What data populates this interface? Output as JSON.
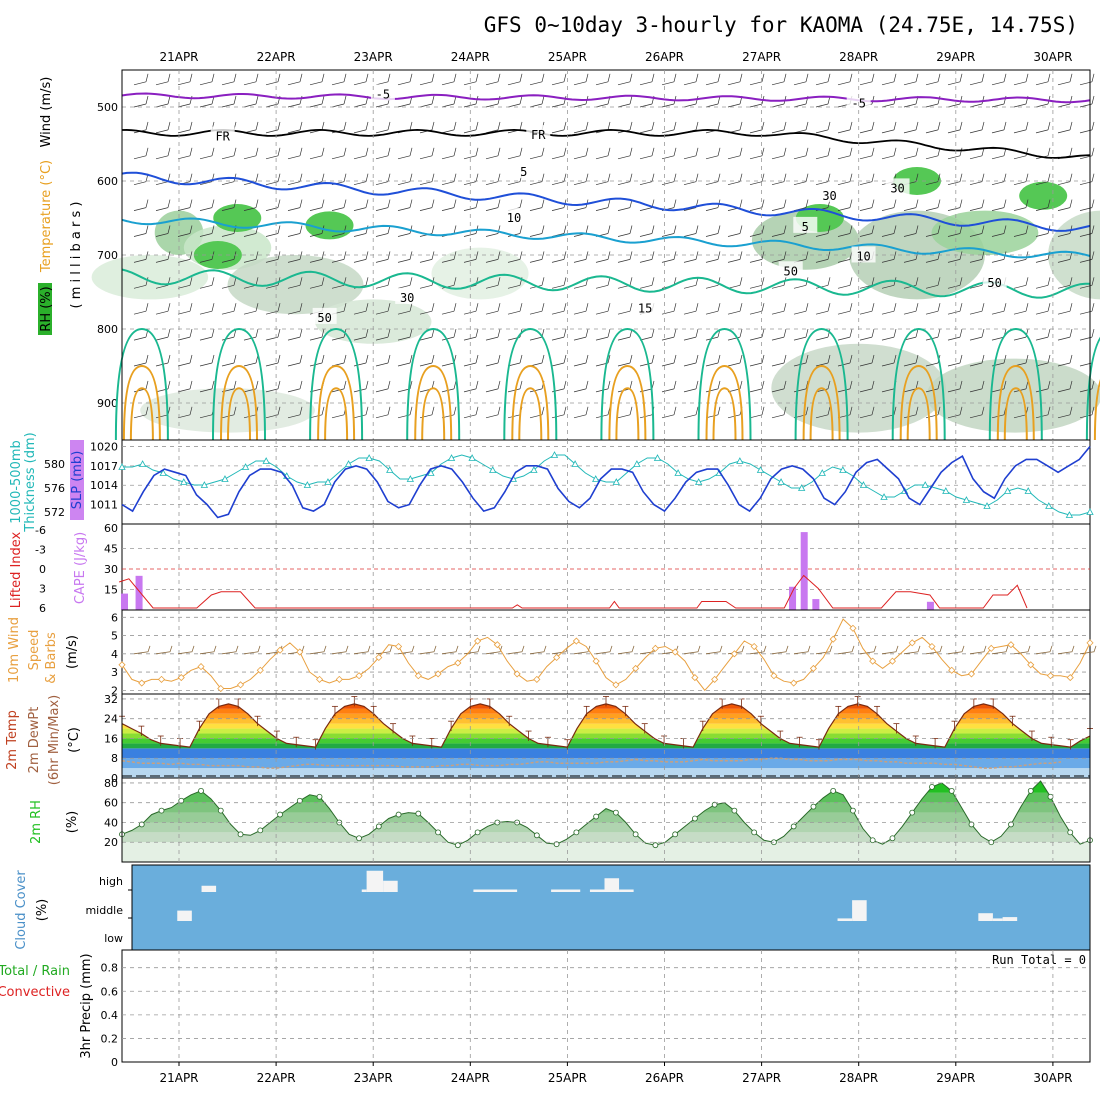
{
  "title": "GFS 0~10day 3-hourly for KAOMA (24.75E, 14.75S)",
  "days": [
    "21APR",
    "22APR",
    "23APR",
    "24APR",
    "25APR",
    "26APR",
    "27APR",
    "28APR",
    "29APR",
    "30APR"
  ],
  "colors": {
    "rh_green": "#2bb02b",
    "temp_blue": "#1f4fd8",
    "temp_cyan": "#1aa0d0",
    "temp_teal": "#1ab890",
    "temp_orange": "#e8a020",
    "temp_purple": "#8a1fc0",
    "slp": "#1f3fd0",
    "thickness": "#22b8b8",
    "cape": "#c878f0",
    "lifted": "#dd2222",
    "wind": "#e8a040",
    "rh2m": "#22c022",
    "cloud": "#6aaedc"
  },
  "chart_data": [
    {
      "type": "heatmap",
      "name": "upper-air",
      "ylabel_parts": [
        "RH (%)",
        "Temperature (°C)",
        "Wind (m/s)"
      ],
      "ylabel_right": "( m i l l i b a r s )",
      "y_ticks": [
        500,
        600,
        700,
        800,
        900
      ],
      "ylim": [
        950,
        450
      ],
      "contour_labels": [
        {
          "text": "-5",
          "day": 2.1,
          "p": 483,
          "color": "#8a1fc0"
        },
        {
          "text": "-5",
          "day": 7.0,
          "p": 495,
          "color": "#8a1fc0"
        },
        {
          "text": "FR",
          "day": 0.45,
          "p": 540,
          "color": "#000000"
        },
        {
          "text": "FR",
          "day": 3.7,
          "p": 538,
          "color": "#000000"
        },
        {
          "text": "5",
          "day": 3.55,
          "p": 588,
          "color": "#1f4fd8"
        },
        {
          "text": "5",
          "day": 6.45,
          "p": 662,
          "color": "#1f4fd8"
        },
        {
          "text": "10",
          "day": 3.45,
          "p": 650,
          "color": "#1aa0d0"
        },
        {
          "text": "10",
          "day": 7.05,
          "p": 702,
          "color": "#1aa0d0"
        },
        {
          "text": "15",
          "day": 4.8,
          "p": 772,
          "color": "#1ab890"
        },
        {
          "text": "50",
          "day": 1.5,
          "p": 785,
          "color": "#888888"
        },
        {
          "text": "30",
          "day": 2.35,
          "p": 758,
          "color": "#888888"
        },
        {
          "text": "50",
          "day": 6.3,
          "p": 722,
          "color": "#888888"
        },
        {
          "text": "50",
          "day": 8.4,
          "p": 738,
          "color": "#888888"
        },
        {
          "text": "30",
          "day": 6.7,
          "p": 620,
          "color": "#888888"
        },
        {
          "text": "30",
          "day": 7.4,
          "p": 610,
          "color": "#888888"
        }
      ]
    },
    {
      "type": "line",
      "name": "slp-thickness",
      "ylabel_left": "1000-500mb Thickness (dm)",
      "ylabel_right": "SLP (mb)",
      "left_ticks": [
        572,
        576,
        580
      ],
      "left_ylim": [
        570,
        584
      ],
      "right_ticks": [
        1011,
        1014,
        1017,
        1020
      ],
      "right_ylim": [
        1008,
        1021
      ],
      "series": [
        {
          "name": "SLP",
          "axis": "right",
          "values": [
            1011,
            1010,
            1013,
            1015.5,
            1016.5,
            1016,
            1015.5,
            1012.5,
            1011,
            1009,
            1009.5,
            1013,
            1015.5,
            1016.5,
            1016.5,
            1016,
            1014,
            1010.5,
            1010,
            1011,
            1014.5,
            1016.5,
            1017,
            1016.5,
            1014.5,
            1011.5,
            1010.5,
            1011,
            1014,
            1016.5,
            1017,
            1016.5,
            1014.5,
            1012,
            1010,
            1010.5,
            1013,
            1016,
            1017,
            1017,
            1016.5,
            1013.5,
            1011.5,
            1010.5,
            1012,
            1015,
            1016.5,
            1016.5,
            1016,
            1013,
            1011,
            1010,
            1012,
            1014.5,
            1016,
            1016.5,
            1016.5,
            1014,
            1011,
            1010,
            1012,
            1015,
            1016.5,
            1017,
            1016.5,
            1015,
            1012,
            1011,
            1013,
            1016,
            1017.5,
            1018,
            1016.5,
            1015,
            1012,
            1011,
            1013.5,
            1016,
            1017.5,
            1018.5,
            1015,
            1013,
            1012,
            1015,
            1017,
            1018,
            1018,
            1017,
            1016,
            1017,
            1018,
            1020
          ]
        },
        {
          "name": "Thickness",
          "axis": "left",
          "values": [
            579.5,
            579.5,
            580,
            579,
            578.5,
            577.5,
            577,
            576.5,
            576.5,
            577,
            577.5,
            578.5,
            579.5,
            580.5,
            580.5,
            579.5,
            578,
            577,
            576.5,
            577,
            577,
            578.5,
            580,
            581,
            581,
            580.5,
            579,
            577.5,
            577.5,
            578,
            578.5,
            580,
            581,
            581.5,
            581,
            580,
            579,
            578,
            577.5,
            578,
            579,
            580.5,
            581.5,
            581.5,
            580,
            578.5,
            577.5,
            577,
            577,
            578.5,
            580,
            581,
            581,
            580,
            578.5,
            577.5,
            577,
            577.5,
            578.5,
            580,
            580.5,
            580,
            579,
            578,
            577,
            576,
            576,
            577,
            578.5,
            579.5,
            579,
            578,
            576.5,
            575.5,
            574.5,
            574.5,
            575.5,
            576.5,
            576.5,
            576,
            575.5,
            574.5,
            574,
            573.5,
            573,
            574,
            575.5,
            576,
            575.5,
            574,
            573,
            572,
            571.5,
            571.5,
            572
          ]
        }
      ]
    },
    {
      "type": "bar",
      "name": "cape-li",
      "ylabel_left": "Lifted Index",
      "ylabel_right": "CAPE (J/kg)",
      "left_ticks": [
        "-6",
        "-3",
        "0",
        "3",
        "6"
      ],
      "right_ticks": [
        15,
        30,
        45,
        60
      ],
      "right_ylim": [
        0,
        60
      ],
      "cape": [
        {
          "day": 0.0,
          "v": 12
        },
        {
          "day": 0.15,
          "v": 25
        },
        {
          "day": 6.88,
          "v": 17
        },
        {
          "day": 7.0,
          "v": 57
        },
        {
          "day": 7.12,
          "v": 8
        },
        {
          "day": 8.3,
          "v": 6
        }
      ],
      "li": [
        {
          "day": -0.05,
          "v": 2
        },
        {
          "day": 0.05,
          "v": 1.5
        },
        {
          "day": 0.3,
          "v": 6
        },
        {
          "day": 0.75,
          "v": 6
        },
        {
          "day": 0.9,
          "v": 4
        },
        {
          "day": 1.0,
          "v": 3.5
        },
        {
          "day": 1.2,
          "v": 3.5
        },
        {
          "day": 1.35,
          "v": 6
        },
        {
          "day": 4.0,
          "v": 6
        },
        {
          "day": 4.05,
          "v": 5.5
        },
        {
          "day": 4.1,
          "v": 6
        },
        {
          "day": 5.0,
          "v": 6
        },
        {
          "day": 5.05,
          "v": 5
        },
        {
          "day": 5.1,
          "v": 6
        },
        {
          "day": 5.9,
          "v": 6
        },
        {
          "day": 5.95,
          "v": 5
        },
        {
          "day": 6.2,
          "v": 5
        },
        {
          "day": 6.3,
          "v": 6
        },
        {
          "day": 6.8,
          "v": 6
        },
        {
          "day": 6.9,
          "v": 3
        },
        {
          "day": 7.0,
          "v": 1
        },
        {
          "day": 7.15,
          "v": 3
        },
        {
          "day": 7.3,
          "v": 6
        },
        {
          "day": 7.8,
          "v": 6
        },
        {
          "day": 7.95,
          "v": 3.5
        },
        {
          "day": 8.1,
          "v": 3.5
        },
        {
          "day": 8.3,
          "v": 4
        },
        {
          "day": 8.4,
          "v": 6
        },
        {
          "day": 8.85,
          "v": 6
        },
        {
          "day": 8.95,
          "v": 4
        },
        {
          "day": 9.1,
          "v": 4
        },
        {
          "day": 9.2,
          "v": 2.5
        },
        {
          "day": 9.3,
          "v": 6
        }
      ]
    },
    {
      "type": "line",
      "name": "wind10m",
      "ylabel": "10m Wind Speed & Barbs (m/s)",
      "y_ticks": [
        2,
        3,
        4,
        5,
        6
      ],
      "ylim": [
        1.8,
        6.4
      ],
      "values": [
        3.4,
        2.6,
        2.4,
        2.6,
        2.6,
        2.5,
        2.7,
        3.1,
        3.3,
        2.8,
        2.1,
        2.1,
        2.3,
        2.6,
        3.1,
        3.7,
        4.2,
        4.6,
        4.1,
        3.0,
        2.6,
        2.4,
        2.6,
        2.6,
        2.8,
        3.2,
        3.8,
        4.5,
        4.4,
        3.5,
        2.8,
        2.6,
        2.9,
        3.3,
        3.5,
        4.0,
        4.7,
        4.9,
        4.5,
        3.6,
        2.9,
        2.5,
        2.6,
        3.3,
        3.8,
        4.3,
        4.7,
        4.4,
        3.6,
        2.7,
        2.3,
        2.6,
        3.2,
        3.8,
        4.3,
        4.4,
        4.1,
        3.6,
        2.7,
        2.0,
        2.6,
        3.3,
        4.0,
        4.7,
        4.4,
        3.7,
        2.8,
        2.5,
        2.4,
        2.6,
        3.2,
        3.8,
        4.8,
        5.9,
        5.4,
        4.3,
        3.6,
        3.2,
        3.6,
        4.1,
        4.6,
        4.9,
        4.4,
        3.7,
        3.1,
        2.8,
        2.9,
        3.6,
        4.3,
        4.4,
        4.5,
        4.0,
        3.4,
        2.9,
        2.8,
        2.8,
        2.7,
        3.5,
        4.6
      ]
    },
    {
      "type": "area",
      "name": "temp2m",
      "ylabel": "2m Temp 2m DewPt (6hr Min/Max) (°C)",
      "y_ticks": [
        0,
        8,
        16,
        24,
        32
      ],
      "ylim": [
        0,
        34
      ],
      "temp": [
        22,
        20,
        18,
        15.5,
        14,
        13.5,
        13,
        12.5,
        20,
        26,
        29,
        30,
        29,
        26,
        22,
        19,
        16,
        14,
        13.5,
        13,
        12.5,
        20,
        26,
        29,
        30,
        29,
        26,
        22,
        19,
        16,
        14,
        13.5,
        13,
        12.5,
        20,
        26,
        29,
        30,
        29,
        26,
        22,
        19,
        16,
        14,
        13.5,
        13,
        12.5,
        20,
        26,
        29,
        30,
        29,
        26,
        22,
        19,
        16,
        14,
        13.5,
        13,
        12.5,
        20,
        26,
        29,
        30,
        29,
        26,
        22,
        19,
        16,
        14,
        13.5,
        13,
        12.5,
        20,
        26,
        29,
        30,
        29,
        26,
        22,
        19,
        16,
        14,
        13.5,
        13,
        12.5,
        20,
        26,
        29,
        30,
        29,
        26,
        22,
        19,
        16,
        14,
        13.5,
        13,
        12.5,
        15,
        17
      ],
      "dew": [
        7,
        6.5,
        6,
        6,
        6,
        5.5,
        6,
        5.5,
        5.5,
        5,
        5,
        5,
        5,
        4.5,
        4.5,
        4,
        4,
        4.5,
        5,
        5.5,
        5.5,
        5,
        5,
        5,
        5,
        5,
        5,
        5,
        5,
        4.5,
        4.5,
        4.5,
        4.5,
        5,
        5,
        5.5,
        5.5,
        5,
        5,
        5,
        5.5,
        5.5,
        6,
        6.5,
        6.5,
        6,
        6,
        6,
        6,
        6,
        6.5,
        6.5,
        7,
        7.5,
        7,
        7,
        6.5,
        6.5,
        6.5,
        7,
        7.5,
        7,
        7,
        7,
        7,
        7.5,
        7.5,
        8,
        8,
        7.5,
        7.5,
        7,
        7,
        7,
        7.5,
        7.5,
        7.5,
        7,
        7,
        6.5,
        6.5,
        6,
        6,
        6,
        6,
        5.5,
        5.5,
        5,
        4.5,
        4,
        4,
        4.5,
        4.5,
        5,
        5.5,
        6,
        6,
        6.5
      ]
    },
    {
      "type": "area",
      "name": "rh2m",
      "ylabel": "2m RH (%)",
      "y_ticks": [
        20,
        40,
        60,
        80
      ],
      "ylim": [
        0,
        85
      ],
      "values": [
        28,
        32,
        38,
        48,
        52,
        55,
        62,
        68,
        72,
        64,
        52,
        38,
        28,
        27,
        32,
        40,
        48,
        55,
        62,
        68,
        66,
        54,
        40,
        28,
        24,
        28,
        36,
        44,
        48,
        50,
        49,
        40,
        30,
        20,
        17,
        22,
        30,
        36,
        40,
        41,
        40,
        35,
        27,
        19,
        18,
        23,
        30,
        38,
        46,
        54,
        50,
        40,
        28,
        19,
        17,
        20,
        28,
        36,
        44,
        52,
        58,
        60,
        52,
        40,
        30,
        22,
        20,
        26,
        36,
        46,
        56,
        65,
        72,
        68,
        52,
        34,
        22,
        18,
        24,
        36,
        50,
        64,
        76,
        80,
        72,
        55,
        38,
        26,
        20,
        26,
        38,
        56,
        72,
        82,
        66,
        46,
        30,
        18,
        22
      ]
    },
    {
      "type": "heatmap",
      "name": "cloud",
      "ylabel": "Cloud Cover (%)",
      "y_ticks": [
        "high",
        "middle",
        "low"
      ],
      "high": [
        {
          "day": 0.85,
          "w": 0.15,
          "v": 0.25
        },
        {
          "day": 2.5,
          "w": 0.05,
          "v": 0.1
        },
        {
          "day": 2.55,
          "w": 0.17,
          "v": 0.85
        },
        {
          "day": 2.72,
          "w": 0.15,
          "v": 0.45
        },
        {
          "day": 3.65,
          "w": 0.45,
          "v": 0.1
        },
        {
          "day": 4.45,
          "w": 0.3,
          "v": 0.1
        },
        {
          "day": 4.85,
          "w": 0.15,
          "v": 0.1
        },
        {
          "day": 5.0,
          "w": 0.15,
          "v": 0.55
        },
        {
          "day": 5.15,
          "w": 0.15,
          "v": 0.1
        }
      ],
      "middle": [
        {
          "day": 0.6,
          "w": 0.15,
          "v": 0.4
        },
        {
          "day": 7.4,
          "w": 0.15,
          "v": 0.1
        },
        {
          "day": 7.55,
          "w": 0.15,
          "v": 0.8
        },
        {
          "day": 8.85,
          "w": 0.15,
          "v": 0.3
        },
        {
          "day": 9.0,
          "w": 0.1,
          "v": 0.1
        },
        {
          "day": 9.1,
          "w": 0.15,
          "v": 0.15
        }
      ]
    },
    {
      "type": "bar",
      "name": "precip",
      "ylabel": "3hr Precip (mm)",
      "ylabel_side": "Total / Rain Convective",
      "y_ticks": [
        0,
        0.2,
        0.4,
        0.6,
        0.8
      ],
      "ylim": [
        0,
        0.95
      ],
      "run_total": "Run Total = 0",
      "values": []
    }
  ]
}
